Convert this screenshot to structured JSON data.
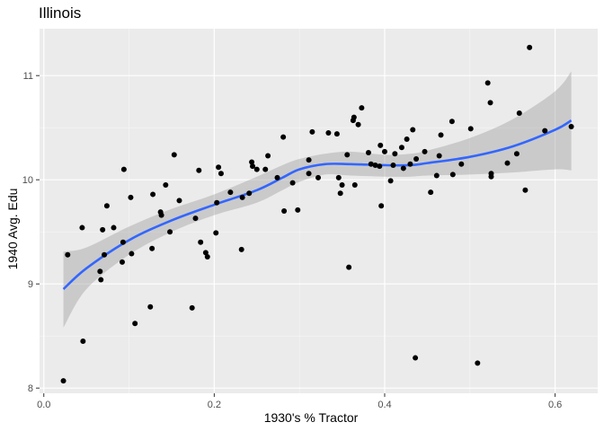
{
  "chart_data": {
    "type": "scatter",
    "title": "Illinois",
    "xlabel": "1930's % Tractor",
    "ylabel": "1940 Avg. Edu",
    "xlim": [
      -0.005,
      0.65
    ],
    "ylim": [
      7.95,
      11.45
    ],
    "x_ticks": [
      0.0,
      0.2,
      0.4,
      0.6
    ],
    "x_tick_labels": [
      "0.0",
      "0.2",
      "0.4",
      "0.6"
    ],
    "y_ticks": [
      8,
      9,
      10,
      11
    ],
    "y_tick_labels": [
      "8",
      "9",
      "10",
      "11"
    ],
    "grid": true,
    "colors": {
      "panel": "#ebebeb",
      "grid_major": "#ffffff",
      "points": "#000000",
      "smooth_line": "#3366ff",
      "ribbon": "#999999"
    },
    "points": [
      [
        0.023,
        8.07
      ],
      [
        0.028,
        9.28
      ],
      [
        0.045,
        9.54
      ],
      [
        0.046,
        8.45
      ],
      [
        0.066,
        9.12
      ],
      [
        0.067,
        9.04
      ],
      [
        0.069,
        9.52
      ],
      [
        0.071,
        9.28
      ],
      [
        0.074,
        9.75
      ],
      [
        0.082,
        9.54
      ],
      [
        0.092,
        9.21
      ],
      [
        0.093,
        9.4
      ],
      [
        0.094,
        10.1
      ],
      [
        0.102,
        9.83
      ],
      [
        0.103,
        9.29
      ],
      [
        0.107,
        8.62
      ],
      [
        0.125,
        8.78
      ],
      [
        0.127,
        9.34
      ],
      [
        0.128,
        9.86
      ],
      [
        0.137,
        9.69
      ],
      [
        0.138,
        9.66
      ],
      [
        0.143,
        9.95
      ],
      [
        0.148,
        9.5
      ],
      [
        0.153,
        10.24
      ],
      [
        0.159,
        9.8
      ],
      [
        0.174,
        8.77
      ],
      [
        0.178,
        9.63
      ],
      [
        0.182,
        10.09
      ],
      [
        0.184,
        9.4
      ],
      [
        0.19,
        9.3
      ],
      [
        0.192,
        9.26
      ],
      [
        0.202,
        9.49
      ],
      [
        0.203,
        9.78
      ],
      [
        0.205,
        10.12
      ],
      [
        0.208,
        10.06
      ],
      [
        0.219,
        9.88
      ],
      [
        0.232,
        9.33
      ],
      [
        0.233,
        9.83
      ],
      [
        0.241,
        9.87
      ],
      [
        0.244,
        10.17
      ],
      [
        0.245,
        10.13
      ],
      [
        0.25,
        10.1
      ],
      [
        0.26,
        10.1
      ],
      [
        0.263,
        10.23
      ],
      [
        0.274,
        10.02
      ],
      [
        0.281,
        10.41
      ],
      [
        0.282,
        9.7
      ],
      [
        0.292,
        9.97
      ],
      [
        0.298,
        9.71
      ],
      [
        0.311,
        10.19
      ],
      [
        0.311,
        10.06
      ],
      [
        0.315,
        10.46
      ],
      [
        0.322,
        10.02
      ],
      [
        0.334,
        10.45
      ],
      [
        0.344,
        10.44
      ],
      [
        0.346,
        10.02
      ],
      [
        0.348,
        9.87
      ],
      [
        0.35,
        9.95
      ],
      [
        0.356,
        10.24
      ],
      [
        0.358,
        9.16
      ],
      [
        0.363,
        10.57
      ],
      [
        0.364,
        10.6
      ],
      [
        0.365,
        9.95
      ],
      [
        0.369,
        10.53
      ],
      [
        0.373,
        10.69
      ],
      [
        0.381,
        10.26
      ],
      [
        0.384,
        10.15
      ],
      [
        0.389,
        10.14
      ],
      [
        0.394,
        10.13
      ],
      [
        0.395,
        10.33
      ],
      [
        0.396,
        9.75
      ],
      [
        0.4,
        10.27
      ],
      [
        0.407,
        9.99
      ],
      [
        0.41,
        10.14
      ],
      [
        0.412,
        10.25
      ],
      [
        0.42,
        10.31
      ],
      [
        0.422,
        10.11
      ],
      [
        0.426,
        10.39
      ],
      [
        0.43,
        10.15
      ],
      [
        0.433,
        10.48
      ],
      [
        0.436,
        8.29
      ],
      [
        0.437,
        10.2
      ],
      [
        0.447,
        10.27
      ],
      [
        0.454,
        9.88
      ],
      [
        0.461,
        10.04
      ],
      [
        0.464,
        10.23
      ],
      [
        0.466,
        10.43
      ],
      [
        0.479,
        10.56
      ],
      [
        0.48,
        10.05
      ],
      [
        0.49,
        10.15
      ],
      [
        0.501,
        10.49
      ],
      [
        0.509,
        8.24
      ],
      [
        0.521,
        10.93
      ],
      [
        0.524,
        10.74
      ],
      [
        0.525,
        10.06
      ],
      [
        0.525,
        10.03
      ],
      [
        0.544,
        10.16
      ],
      [
        0.555,
        10.25
      ],
      [
        0.558,
        10.64
      ],
      [
        0.565,
        9.9
      ],
      [
        0.57,
        11.27
      ],
      [
        0.588,
        10.47
      ],
      [
        0.619,
        10.51
      ]
    ],
    "smooth_fit": [
      [
        0.023,
        8.95
      ],
      [
        0.05,
        9.15
      ],
      [
        0.1,
        9.42
      ],
      [
        0.15,
        9.61
      ],
      [
        0.2,
        9.76
      ],
      [
        0.25,
        9.9
      ],
      [
        0.28,
        10.02
      ],
      [
        0.3,
        10.1
      ],
      [
        0.33,
        10.15
      ],
      [
        0.36,
        10.15
      ],
      [
        0.4,
        10.14
      ],
      [
        0.43,
        10.14
      ],
      [
        0.45,
        10.16
      ],
      [
        0.5,
        10.22
      ],
      [
        0.55,
        10.32
      ],
      [
        0.6,
        10.48
      ],
      [
        0.619,
        10.57
      ]
    ],
    "ribbon_upper": [
      [
        0.023,
        9.31
      ],
      [
        0.05,
        9.35
      ],
      [
        0.1,
        9.55
      ],
      [
        0.15,
        9.72
      ],
      [
        0.2,
        9.86
      ],
      [
        0.25,
        10.03
      ],
      [
        0.28,
        10.14
      ],
      [
        0.3,
        10.2
      ],
      [
        0.33,
        10.25
      ],
      [
        0.36,
        10.27
      ],
      [
        0.4,
        10.24
      ],
      [
        0.43,
        10.25
      ],
      [
        0.45,
        10.28
      ],
      [
        0.5,
        10.4
      ],
      [
        0.55,
        10.58
      ],
      [
        0.6,
        10.85
      ],
      [
        0.619,
        11.04
      ]
    ],
    "ribbon_lower": [
      [
        0.023,
        8.58
      ],
      [
        0.05,
        8.95
      ],
      [
        0.1,
        9.28
      ],
      [
        0.15,
        9.5
      ],
      [
        0.2,
        9.66
      ],
      [
        0.25,
        9.78
      ],
      [
        0.28,
        9.9
      ],
      [
        0.3,
        9.98
      ],
      [
        0.33,
        10.05
      ],
      [
        0.36,
        10.04
      ],
      [
        0.4,
        10.03
      ],
      [
        0.43,
        10.03
      ],
      [
        0.45,
        10.04
      ],
      [
        0.5,
        10.05
      ],
      [
        0.55,
        10.07
      ],
      [
        0.6,
        10.1
      ],
      [
        0.619,
        10.09
      ]
    ]
  }
}
